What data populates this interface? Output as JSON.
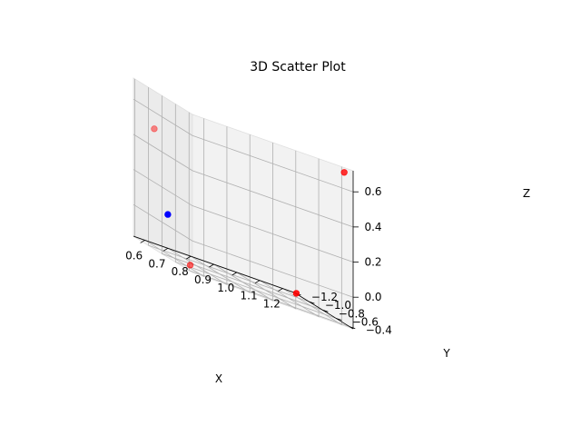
{
  "chart_data": {
    "type": "scatter",
    "projection": "3d",
    "title": "3D Scatter Plot",
    "xlabel": "X",
    "ylabel": "Y",
    "zlabel": "Z",
    "xlim": [
      0.55,
      1.25
    ],
    "ylim": [
      -1.22,
      -0.35
    ],
    "zlim": [
      -0.18,
      0.72
    ],
    "xticks": [
      0.6,
      0.7,
      0.8,
      0.9,
      1.0,
      1.1,
      1.2
    ],
    "xtick_labels": [
      "0.6",
      "0.7",
      "0.8",
      "0.9",
      "1.0",
      "1.1",
      "1.2"
    ],
    "yticks": [
      -1.2,
      -1.0,
      -0.8,
      -0.6,
      -0.4
    ],
    "ytick_labels": [
      "−1.2",
      "−1.0",
      "−0.8",
      "−0.6",
      "−0.4"
    ],
    "zticks": [
      0.0,
      0.2,
      0.4,
      0.6
    ],
    "ztick_labels": [
      "0.0",
      "0.2",
      "0.4",
      "0.6"
    ],
    "grid": true,
    "points": [
      {
        "x": 0.62,
        "y": -1.15,
        "z": 0.48,
        "color": "#ff0000",
        "alpha": 0.45
      },
      {
        "x": 1.22,
        "y": -0.38,
        "z": 0.69,
        "color": "#ff0000",
        "alpha": 0.8
      },
      {
        "x": 0.62,
        "y": -0.62,
        "z": -0.17,
        "color": "#ff0000",
        "alpha": 0.6
      },
      {
        "x": 1.23,
        "y": -1.12,
        "z": -0.17,
        "color": "#ff0000",
        "alpha": 0.9
      },
      {
        "x": 0.62,
        "y": -0.95,
        "z": 0.04,
        "color": "#0000ff",
        "alpha": 1.0
      }
    ]
  },
  "colors": {
    "pane_left": "#ebebeb",
    "pane_back": "#f2f2f2",
    "pane_floor": "#f5f5f5",
    "grid": "#b0b0b0"
  }
}
